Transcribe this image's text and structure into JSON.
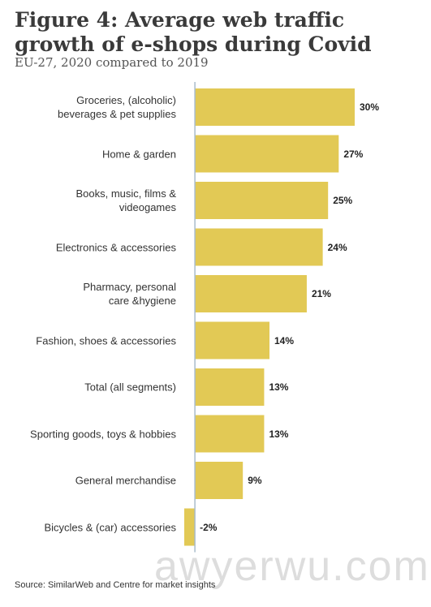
{
  "chart_data": {
    "type": "bar",
    "orientation": "horizontal",
    "title": "Figure 4: Average web traffic growth of e-shops during Covid",
    "subtitle": "EU-27, 2020 compared to 2019",
    "source": "Source: SimilarWeb and Centre for market insights",
    "watermark": "awyerwu.com",
    "categories": [
      "Groceries, (alcoholic)\nbeverages & pet supplies",
      "Home & garden",
      "Books, music, films &\nvideogames",
      "Electronics & accessories",
      "Pharmacy, personal\ncare &hygiene",
      "Fashion, shoes & accessories",
      "Total (all segments)",
      "Sporting goods, toys & hobbies",
      "General merchandise",
      "Bicycles & (car) accessories"
    ],
    "values": [
      30,
      27,
      25,
      24,
      21,
      14,
      13,
      13,
      9,
      -2
    ],
    "value_labels": [
      "30%",
      "27%",
      "25%",
      "24%",
      "21%",
      "14%",
      "13%",
      "13%",
      "9%",
      "-2%"
    ],
    "xlim": [
      -2,
      30
    ],
    "color": "#e2c955"
  }
}
